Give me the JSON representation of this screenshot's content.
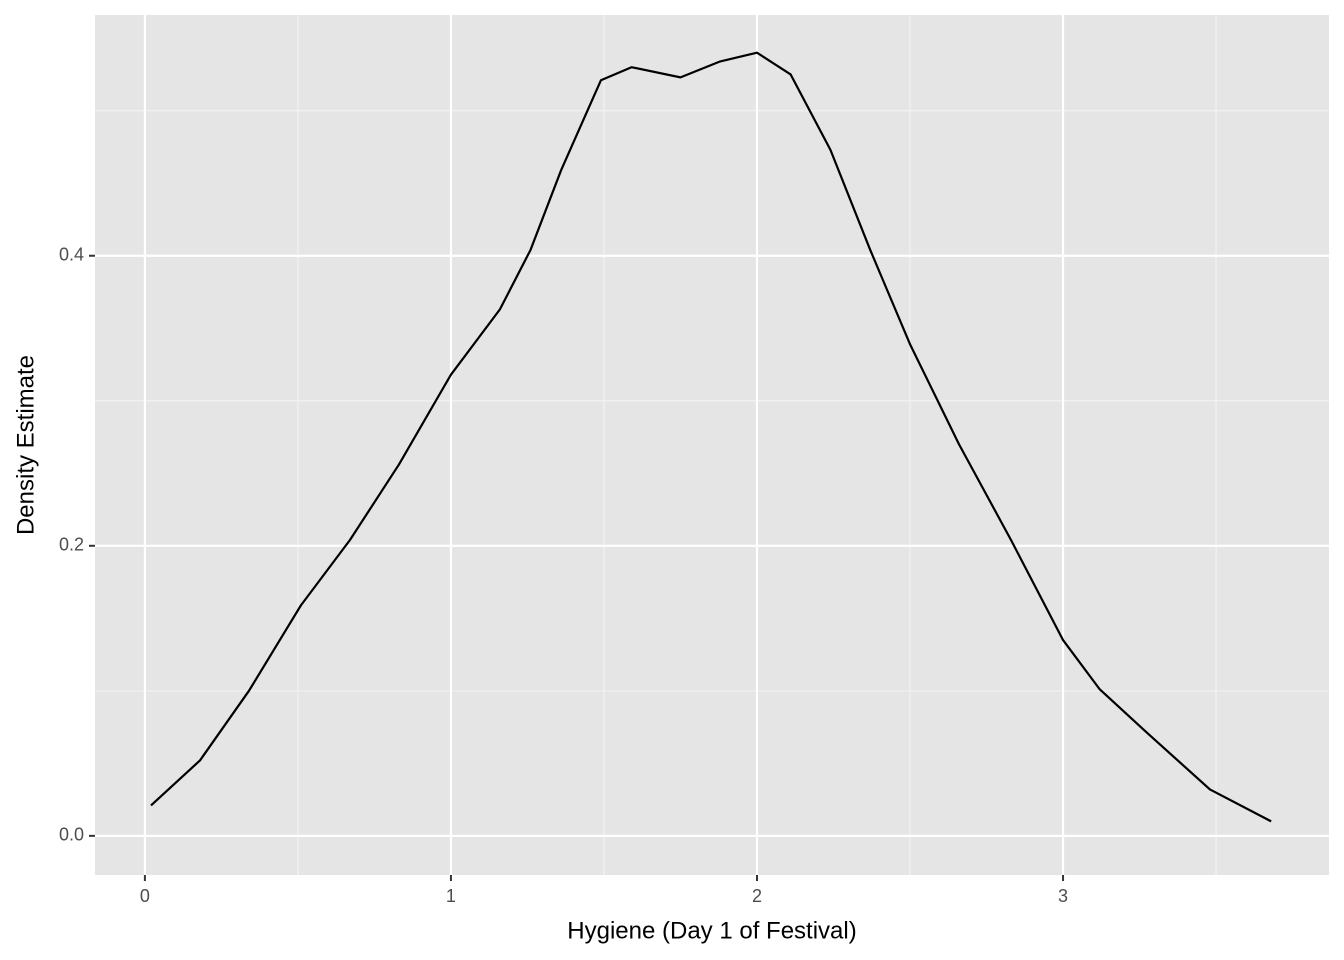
{
  "chart_data": {
    "type": "line",
    "x_label": "Hygiene (Day 1 of Festival)",
    "y_label": "Density Estimate",
    "x": [
      0.02,
      0.18,
      0.34,
      0.51,
      0.67,
      0.83,
      1.0,
      1.16,
      1.26,
      1.36,
      1.49,
      1.59,
      1.75,
      1.88,
      2.0,
      2.11,
      2.24,
      2.37,
      2.5,
      2.66,
      2.83,
      3.0,
      3.12,
      3.28,
      3.48,
      3.68
    ],
    "series": [
      {
        "color": "#000000",
        "values": [
          0.021,
          0.052,
          0.1,
          0.159,
          0.204,
          0.256,
          0.318,
          0.363,
          0.404,
          0.459,
          0.521,
          0.53,
          0.523,
          0.534,
          0.54,
          0.525,
          0.473,
          0.404,
          0.339,
          0.27,
          0.204,
          0.135,
          0.101,
          0.07,
          0.032,
          0.01
        ]
      }
    ],
    "xlim": [
      -0.163,
      3.869
    ],
    "ylim": [
      -0.027,
      0.566
    ],
    "xticks": [
      0,
      1,
      2,
      3
    ],
    "yticks": [
      {
        "value": 0,
        "label": "0.0"
      },
      0.2,
      0.4
    ],
    "x_minor_grid": [
      0.5,
      1.5,
      2.5,
      3.5
    ],
    "y_minor_grid": [
      0.1,
      0.3,
      0.5
    ],
    "grid": true
  }
}
